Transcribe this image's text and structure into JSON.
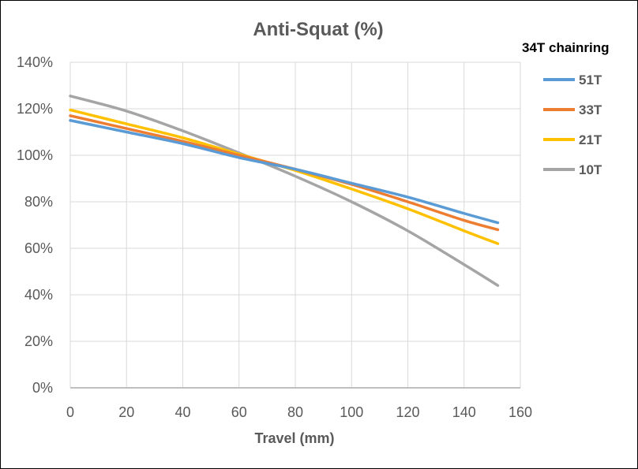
{
  "chart_data": {
    "type": "line",
    "title": "Anti-Squat (%)",
    "xlabel": "Travel (mm)",
    "ylabel": "",
    "xlim": [
      0,
      160
    ],
    "ylim": [
      0,
      1.4
    ],
    "x_ticks": [
      0,
      20,
      40,
      60,
      80,
      100,
      120,
      140,
      160
    ],
    "x_tick_labels": [
      "0",
      "20",
      "40",
      "60",
      "80",
      "100",
      "120",
      "140",
      "160"
    ],
    "y_ticks": [
      0,
      0.2,
      0.4,
      0.6,
      0.8,
      1.0,
      1.2,
      1.4
    ],
    "y_tick_labels": [
      "0%",
      "20%",
      "40%",
      "60%",
      "80%",
      "100%",
      "120%",
      "140%"
    ],
    "grid": true,
    "legend_title": "34T chainring",
    "legend_position": "right",
    "series": [
      {
        "name": "51T",
        "color": "#5B9BD5",
        "x": [
          0,
          20,
          40,
          60,
          80,
          100,
          120,
          140,
          152
        ],
        "y": [
          1.15,
          1.1,
          1.05,
          0.99,
          0.94,
          0.88,
          0.82,
          0.75,
          0.71
        ]
      },
      {
        "name": "33T",
        "color": "#ED7D31",
        "x": [
          0,
          20,
          40,
          60,
          80,
          100,
          120,
          140,
          152
        ],
        "y": [
          1.17,
          1.115,
          1.06,
          1.0,
          0.94,
          0.875,
          0.8,
          0.72,
          0.68
        ]
      },
      {
        "name": "21T",
        "color": "#FFC000",
        "x": [
          0,
          20,
          40,
          60,
          80,
          100,
          120,
          140,
          152
        ],
        "y": [
          1.195,
          1.135,
          1.075,
          1.005,
          0.935,
          0.855,
          0.77,
          0.675,
          0.62
        ]
      },
      {
        "name": "10T",
        "color": "#A5A5A5",
        "x": [
          0,
          20,
          40,
          60,
          80,
          100,
          120,
          140,
          152
        ],
        "y": [
          1.255,
          1.19,
          1.105,
          1.01,
          0.91,
          0.8,
          0.675,
          0.53,
          0.44
        ]
      }
    ]
  }
}
